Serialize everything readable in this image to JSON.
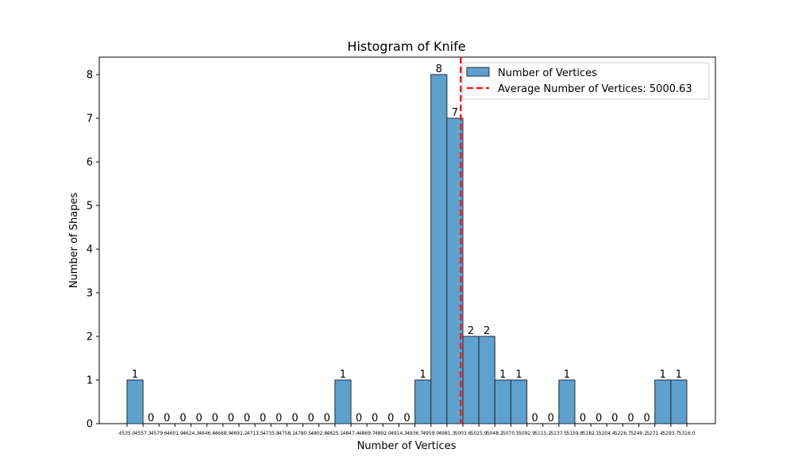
{
  "chart_data": {
    "type": "bar",
    "title": "Histogram of Knife",
    "xlabel": "Number of Vertices",
    "ylabel": "Number of Shapes",
    "ylim": [
      0,
      8.4
    ],
    "y_ticks": [
      0,
      1,
      2,
      3,
      4,
      5,
      6,
      7,
      8
    ],
    "bin_edges": [
      4535.0,
      4557.3,
      4579.6,
      4601.9,
      4624.3,
      4646.6,
      4668.9,
      4691.2,
      4713.5,
      4735.8,
      4758.1,
      4780.5,
      4802.8,
      4825.1,
      4847.4,
      4869.7,
      4892.0,
      4914.3,
      4936.7,
      4959.0,
      4981.3,
      5003.6,
      5025.9,
      5048.2,
      5070.5,
      5092.9,
      5115.2,
      5137.5,
      5159.8,
      5182.1,
      5204.4,
      5226.7,
      5249.1,
      5271.4,
      5293.7,
      5316.0
    ],
    "x_tick_labels": [
      "4535.0",
      "4557.3",
      "4579.6",
      "4601.9",
      "4624.3",
      "4646.6",
      "4668.9",
      "4691.2",
      "4713.5",
      "4735.8",
      "4758.1",
      "4780.5",
      "4802.8",
      "4825.1",
      "4847.4",
      "4869.7",
      "4892.0",
      "4914.3",
      "4936.7",
      "4959.0",
      "4981.3",
      "5003.6",
      "5025.9",
      "5048.2",
      "5070.5",
      "5092.9",
      "5115.2",
      "5137.5",
      "5159.8",
      "5182.1",
      "5204.4",
      "5226.7",
      "5249.1",
      "5271.4",
      "5293.7",
      "5316.0"
    ],
    "counts": [
      1,
      0,
      0,
      0,
      0,
      0,
      0,
      0,
      0,
      0,
      0,
      0,
      0,
      1,
      0,
      0,
      0,
      0,
      1,
      8,
      7,
      2,
      2,
      1,
      1,
      0,
      0,
      1,
      0,
      0,
      0,
      0,
      0,
      1,
      1
    ],
    "average": 5000.63,
    "legend": {
      "position": "top-right",
      "entries": [
        "Number of Vertices",
        "Average Number of Vertices: 5000.63"
      ]
    },
    "colors": {
      "bar": "#5fa0cd",
      "bar_edge": "#1f2d3a",
      "average_line": "#e8201e"
    },
    "grid": false
  }
}
